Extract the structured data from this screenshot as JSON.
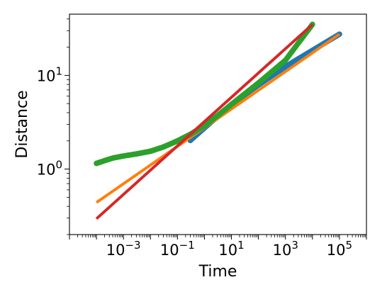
{
  "chart_data": {
    "type": "scatter",
    "title": "",
    "xlabel": "Time",
    "ylabel": "Distance",
    "xscale": "log",
    "yscale": "log",
    "xlim": [
      1e-05,
      1000000.0
    ],
    "ylim": [
      0.2,
      45
    ],
    "grid": false,
    "legend": "none",
    "x_ticks": [
      {
        "value": 0.001,
        "base": "10",
        "exp": "−3"
      },
      {
        "value": 0.1,
        "base": "10",
        "exp": "−1"
      },
      {
        "value": 10,
        "base": "10",
        "exp": "1"
      },
      {
        "value": 1000,
        "base": "10",
        "exp": "3"
      },
      {
        "value": 100000,
        "base": "10",
        "exp": "5"
      }
    ],
    "y_ticks": [
      {
        "value": 1,
        "base": "10",
        "exp": "0"
      },
      {
        "value": 10,
        "base": "10",
        "exp": "1"
      }
    ],
    "series": [
      {
        "kind": "scatter",
        "color": "#1f77b4",
        "x_range": [
          0.3,
          100000
        ],
        "points": [
          [
            0.3,
            2.02
          ],
          [
            1,
            2.75
          ],
          [
            10,
            4.9
          ],
          [
            100,
            7.9
          ],
          [
            1000,
            12.4
          ],
          [
            10000,
            18.5
          ],
          [
            100000,
            27.5
          ]
        ]
      },
      {
        "kind": "line",
        "color": "#ff7f0e",
        "points": [
          [
            0.0001,
            0.44
          ],
          [
            100000,
            27.5
          ]
        ]
      },
      {
        "kind": "scatter",
        "color": "#2ca02c",
        "x_range": [
          0.0001,
          10000
        ],
        "points": [
          [
            0.0001,
            1.15
          ],
          [
            0.0002,
            1.23
          ],
          [
            0.0004,
            1.31
          ],
          [
            0.001,
            1.38
          ],
          [
            0.003,
            1.45
          ],
          [
            0.01,
            1.55
          ],
          [
            0.03,
            1.72
          ],
          [
            0.1,
            2.0
          ],
          [
            0.3,
            2.35
          ],
          [
            1,
            2.9
          ],
          [
            3,
            3.7
          ],
          [
            10,
            4.9
          ],
          [
            100,
            8.3
          ],
          [
            1000,
            14.5
          ],
          [
            10000,
            35.0
          ]
        ]
      },
      {
        "kind": "line",
        "color": "#d62728",
        "points": [
          [
            0.0001,
            0.295
          ],
          [
            10000,
            35.0
          ]
        ]
      }
    ]
  }
}
